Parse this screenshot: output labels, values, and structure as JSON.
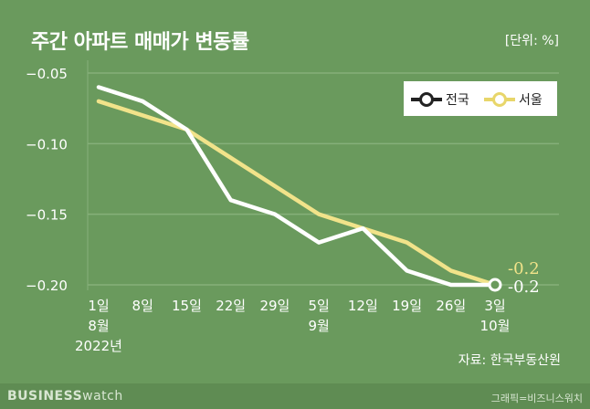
{
  "chart_data": {
    "type": "line",
    "title": "주간 아파트 매매가 변동률",
    "unit_label": "[단위: %]",
    "ylim": [
      -0.2,
      -0.05
    ],
    "yticks": [
      -0.05,
      -0.1,
      -0.15,
      -0.2
    ],
    "ytick_labels": [
      "−0.05",
      "−0.10",
      "−0.15",
      "−0.20"
    ],
    "x_labels": [
      [
        "1일",
        "8월",
        "2022년"
      ],
      [
        "8일"
      ],
      [
        "15일"
      ],
      [
        "22일"
      ],
      [
        "29일"
      ],
      [
        "5일",
        "9월"
      ],
      [
        "12일"
      ],
      [
        "19일"
      ],
      [
        "26일"
      ],
      [
        "3일",
        "10월"
      ]
    ],
    "series": [
      {
        "name": "전국",
        "color": "#ffffff",
        "values": [
          -0.06,
          -0.07,
          -0.09,
          -0.14,
          -0.15,
          -0.17,
          -0.16,
          -0.19,
          -0.2,
          -0.2
        ]
      },
      {
        "name": "서울",
        "color": "#f1e38a",
        "values": [
          -0.07,
          -0.08,
          -0.09,
          -0.11,
          -0.13,
          -0.15,
          -0.16,
          -0.17,
          -0.19,
          -0.2
        ]
      }
    ],
    "end_labels": {
      "서울": "-0.2",
      "전국": "-0.2"
    },
    "grid": true,
    "legend_position": "top-right"
  },
  "source": "자료: 한국부동산원",
  "footer": {
    "brand_bold": "BUSINESS",
    "brand_light": "watch",
    "credit": "그래픽=비즈니스워치"
  }
}
